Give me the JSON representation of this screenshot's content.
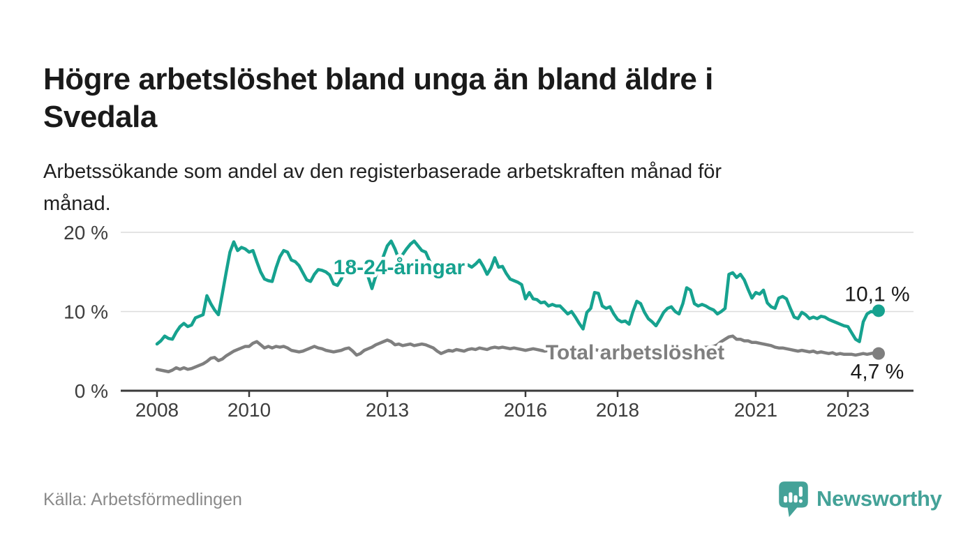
{
  "header": {
    "title": "Högre arbetslöshet bland unga än bland äldre i\nSvedala",
    "subtitle": "Arbetssökande som andel av den registerbaserade arbetskraften månad för\nmånad."
  },
  "chart_data": {
    "type": "line",
    "title": "Högre arbetslöshet bland unga än bland äldre i Svedala",
    "subtitle": "Arbetssökande som andel av den registerbaserade arbetskraften månad för månad.",
    "unit": "%",
    "frequency": "monthly",
    "x_start": "2008-01",
    "x_end": "2023-09",
    "grid": true,
    "legend": "inline-labels",
    "y_axis": {
      "ticks": [
        {
          "label": "0 %",
          "value": 0
        },
        {
          "label": "10 %",
          "value": 10
        },
        {
          "label": "20 %",
          "value": 20
        }
      ],
      "max": 20
    },
    "x_axis": {
      "ticks": [
        2008,
        2010,
        2013,
        2016,
        2018,
        2021,
        2023
      ]
    },
    "series": [
      {
        "name": "Total arbetslöshet",
        "color": "#7f7f7f",
        "end_label": "4,7 %",
        "end_value": 4.7,
        "values": [
          2.7,
          2.6,
          2.5,
          2.4,
          2.6,
          2.9,
          2.7,
          2.9,
          2.7,
          2.8,
          3.0,
          3.2,
          3.4,
          3.7,
          4.1,
          4.2,
          3.8,
          4.0,
          4.4,
          4.7,
          5.0,
          5.2,
          5.4,
          5.6,
          5.6,
          6.0,
          6.2,
          5.8,
          5.4,
          5.6,
          5.4,
          5.6,
          5.5,
          5.6,
          5.4,
          5.1,
          5.0,
          4.9,
          5.0,
          5.2,
          5.4,
          5.6,
          5.4,
          5.3,
          5.1,
          5.0,
          4.9,
          5.0,
          5.1,
          5.3,
          5.4,
          5.0,
          4.5,
          4.7,
          5.1,
          5.3,
          5.5,
          5.8,
          6.0,
          6.2,
          6.4,
          6.2,
          5.8,
          5.9,
          5.7,
          5.8,
          5.9,
          5.7,
          5.8,
          5.9,
          5.8,
          5.6,
          5.4,
          5.0,
          4.7,
          4.9,
          5.1,
          5.0,
          5.2,
          5.1,
          5.0,
          5.2,
          5.3,
          5.2,
          5.4,
          5.3,
          5.2,
          5.4,
          5.5,
          5.4,
          5.5,
          5.4,
          5.3,
          5.4,
          5.3,
          5.2,
          5.1,
          5.2,
          5.3,
          5.2,
          5.1,
          5.0,
          5.1,
          5.0,
          4.9,
          5.0,
          4.9,
          4.8,
          4.9,
          4.8,
          4.7,
          4.8,
          4.9,
          5.0,
          5.2,
          5.1,
          5.0,
          4.9,
          4.8,
          4.9,
          4.8,
          4.7,
          4.6,
          4.7,
          4.8,
          5.0,
          5.1,
          5.0,
          4.8,
          4.7,
          4.6,
          4.7,
          4.8,
          4.9,
          5.0,
          4.9,
          4.8,
          5.0,
          5.2,
          5.3,
          5.2,
          5.3,
          5.4,
          5.5,
          5.5,
          5.6,
          5.8,
          6.2,
          6.5,
          6.8,
          6.9,
          6.5,
          6.5,
          6.3,
          6.3,
          6.1,
          6.1,
          6.0,
          5.9,
          5.8,
          5.7,
          5.5,
          5.4,
          5.4,
          5.3,
          5.2,
          5.1,
          5.0,
          5.1,
          5.0,
          4.9,
          5.0,
          4.8,
          4.9,
          4.8,
          4.7,
          4.8,
          4.6,
          4.7,
          4.6,
          4.6,
          4.6,
          4.5,
          4.6,
          4.7,
          4.6,
          4.7,
          4.8,
          4.7
        ]
      },
      {
        "name": "18-24-åringar",
        "color": "#16a28f",
        "end_label": "10,1 %",
        "end_value": 10.1,
        "values": [
          5.9,
          6.3,
          6.9,
          6.6,
          6.5,
          7.4,
          8.1,
          8.5,
          8.1,
          8.3,
          9.2,
          9.4,
          9.6,
          12.0,
          11.0,
          10.2,
          9.6,
          12.2,
          14.9,
          17.5,
          18.8,
          17.7,
          18.1,
          17.9,
          17.5,
          17.7,
          16.3,
          15.0,
          14.1,
          13.9,
          13.8,
          15.5,
          16.9,
          17.7,
          17.5,
          16.5,
          16.3,
          15.8,
          14.9,
          14.0,
          13.8,
          14.7,
          15.3,
          15.2,
          15.0,
          14.6,
          13.5,
          13.3,
          14.1,
          15.3,
          16.0,
          15.7,
          15.2,
          15.5,
          15.2,
          14.4,
          12.9,
          14.5,
          15.8,
          17.0,
          18.3,
          18.9,
          17.9,
          16.6,
          17.2,
          17.9,
          18.5,
          18.9,
          18.3,
          17.7,
          17.5,
          16.4,
          15.7,
          14.9,
          14.6,
          15.2,
          15.5,
          15.6,
          15.1,
          14.9,
          15.7,
          15.9,
          15.6,
          16.0,
          16.5,
          15.7,
          14.7,
          15.5,
          16.8,
          15.6,
          15.7,
          14.8,
          14.1,
          13.9,
          13.7,
          13.4,
          11.6,
          12.4,
          11.6,
          11.5,
          11.1,
          11.2,
          10.7,
          10.9,
          10.7,
          10.7,
          10.2,
          9.7,
          10.0,
          9.3,
          8.5,
          7.8,
          9.9,
          10.4,
          12.4,
          12.3,
          10.7,
          10.4,
          10.6,
          9.7,
          9.0,
          8.7,
          8.8,
          8.4,
          10.0,
          11.3,
          11.0,
          9.9,
          9.1,
          8.7,
          8.2,
          9.0,
          9.9,
          10.4,
          10.6,
          10.0,
          9.7,
          11.0,
          13.0,
          12.7,
          11.0,
          10.7,
          10.9,
          10.7,
          10.4,
          10.2,
          9.7,
          10.0,
          10.4,
          14.7,
          14.9,
          14.3,
          14.7,
          14.0,
          12.8,
          11.7,
          12.4,
          12.2,
          12.7,
          11.1,
          10.6,
          10.4,
          11.7,
          11.9,
          11.6,
          10.4,
          9.3,
          9.1,
          9.9,
          9.6,
          9.1,
          9.3,
          9.1,
          9.4,
          9.3,
          9.0,
          8.8,
          8.6,
          8.4,
          8.2,
          8.1,
          7.3,
          6.5,
          6.2,
          8.7,
          9.7,
          10.0,
          9.9,
          10.1
        ]
      }
    ]
  },
  "footer": {
    "source": "Källa: Arbetsförmedlingen",
    "brand_name": "Newsworthy",
    "brand_color": "#44a298"
  }
}
